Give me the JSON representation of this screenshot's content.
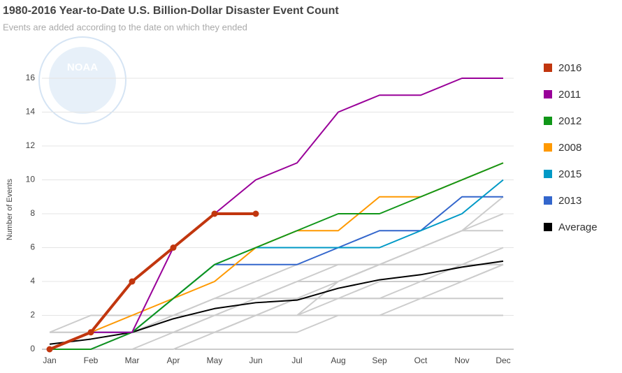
{
  "chart_data": {
    "type": "line",
    "title": "1980-2016 Year-to-Date U.S. Billion-Dollar Disaster Event Count",
    "subtitle": "Events are added according to the date on which they ended",
    "y_label": "Number of Events",
    "logo": "NOAA",
    "categories": [
      "Jan",
      "Feb",
      "Mar",
      "Apr",
      "May",
      "Jun",
      "Jul",
      "Aug",
      "Sep",
      "Oct",
      "Nov",
      "Dec"
    ],
    "ylim": [
      0,
      16
    ],
    "yticks": [
      0,
      2,
      4,
      6,
      8,
      10,
      12,
      14,
      16
    ],
    "grid": true,
    "legend": "right",
    "background_color": "#cccccc",
    "background_series": [
      {
        "values": [
          1,
          1,
          1,
          2,
          2,
          3,
          3,
          3,
          3,
          4,
          4,
          5
        ]
      },
      {
        "values": [
          0,
          1,
          1,
          1,
          2,
          2,
          3,
          4,
          5,
          5,
          5,
          5
        ]
      },
      {
        "values": [
          0,
          0,
          1,
          1,
          2,
          3,
          4,
          5,
          5,
          6,
          7,
          8
        ]
      },
      {
        "values": [
          1,
          2,
          2,
          2,
          2,
          2,
          3,
          3,
          4,
          4,
          5,
          6
        ]
      },
      {
        "values": [
          0,
          0,
          0,
          1,
          1,
          2,
          2,
          3,
          3,
          3,
          4,
          5
        ]
      },
      {
        "values": [
          0,
          1,
          2,
          2,
          3,
          3,
          4,
          4,
          5,
          6,
          7,
          9
        ]
      },
      {
        "values": [
          0,
          0,
          0,
          0,
          1,
          1,
          1,
          2,
          2,
          3,
          3,
          3
        ]
      },
      {
        "values": [
          1,
          1,
          1,
          1,
          1,
          2,
          2,
          2,
          2,
          2,
          2,
          2
        ]
      },
      {
        "values": [
          0,
          0,
          1,
          2,
          3,
          4,
          5,
          5,
          5,
          5,
          5,
          5
        ]
      },
      {
        "values": [
          0,
          1,
          1,
          1,
          1,
          2,
          2,
          4,
          5,
          6,
          7,
          7
        ]
      }
    ],
    "series": [
      {
        "name": "2016",
        "color": "#c1360e",
        "width": 4,
        "markers": true,
        "values": [
          0,
          1,
          4,
          6,
          8,
          8,
          null,
          null,
          null,
          null,
          null,
          null
        ]
      },
      {
        "name": "2011",
        "color": "#990099",
        "width": 2,
        "values": [
          0,
          1,
          1,
          6,
          8,
          10,
          11,
          14,
          15,
          15,
          16,
          16
        ]
      },
      {
        "name": "2012",
        "color": "#109618",
        "width": 2,
        "values": [
          0,
          0,
          1,
          3,
          5,
          6,
          7,
          8,
          8,
          9,
          10,
          11
        ]
      },
      {
        "name": "2008",
        "color": "#ff9900",
        "width": 2,
        "values": [
          0,
          1,
          2,
          3,
          4,
          6,
          7,
          7,
          9,
          9,
          10,
          11
        ]
      },
      {
        "name": "2015",
        "color": "#0099c6",
        "width": 2,
        "values": [
          0,
          1,
          1,
          3,
          5,
          6,
          6,
          6,
          6,
          7,
          8,
          10
        ]
      },
      {
        "name": "2013",
        "color": "#3366cc",
        "width": 2,
        "values": [
          0,
          0,
          1,
          3,
          5,
          5,
          5,
          6,
          7,
          7,
          9,
          9
        ]
      },
      {
        "name": "Average",
        "color": "#000000",
        "width": 2,
        "values": [
          0.3,
          0.6,
          1.0,
          1.8,
          2.4,
          2.75,
          2.9,
          3.6,
          4.1,
          4.4,
          4.85,
          5.2
        ]
      }
    ]
  }
}
